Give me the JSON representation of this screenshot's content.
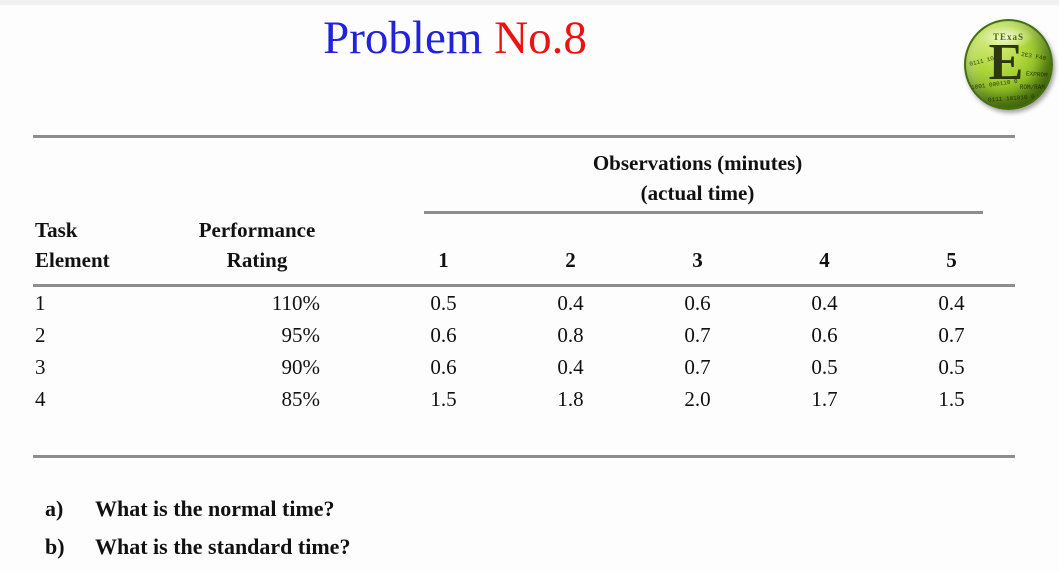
{
  "title": {
    "part_blue": "Problem ",
    "part_red": "No.8",
    "colors": {
      "blue": "#2222dd",
      "red": "#ee1111"
    }
  },
  "logo": {
    "top_label": "TExaS",
    "letter": "E",
    "fragments": [
      "0111 1010",
      "1001 000110 0",
      "ROM/RAM",
      "EXPROM",
      "2E3 F40",
      "0111 101010 0"
    ]
  },
  "table": {
    "group_header_line1": "Observations (minutes)",
    "group_header_line2": "(actual time)",
    "col_task_line1": "Task",
    "col_task_line2": "Element",
    "col_rating_line1": "Performance",
    "col_rating_line2": "Rating",
    "obs_cols": [
      "1",
      "2",
      "3",
      "4",
      "5"
    ],
    "rows": [
      {
        "task": "1",
        "rating": "110%",
        "obs": [
          "0.5",
          "0.4",
          "0.6",
          "0.4",
          "0.4"
        ]
      },
      {
        "task": "2",
        "rating": "95%",
        "obs": [
          "0.6",
          "0.8",
          "0.7",
          "0.6",
          "0.7"
        ]
      },
      {
        "task": "3",
        "rating": "90%",
        "obs": [
          "0.6",
          "0.4",
          "0.7",
          "0.5",
          "0.5"
        ]
      },
      {
        "task": "4",
        "rating": "85%",
        "obs": [
          "1.5",
          "1.8",
          "2.0",
          "1.7",
          "1.5"
        ]
      }
    ],
    "rule_color": "#8d8d8d"
  },
  "questions": [
    {
      "label": "a)",
      "text": "What is the normal time?"
    },
    {
      "label": "b)",
      "text": "What is the standard time?"
    }
  ]
}
